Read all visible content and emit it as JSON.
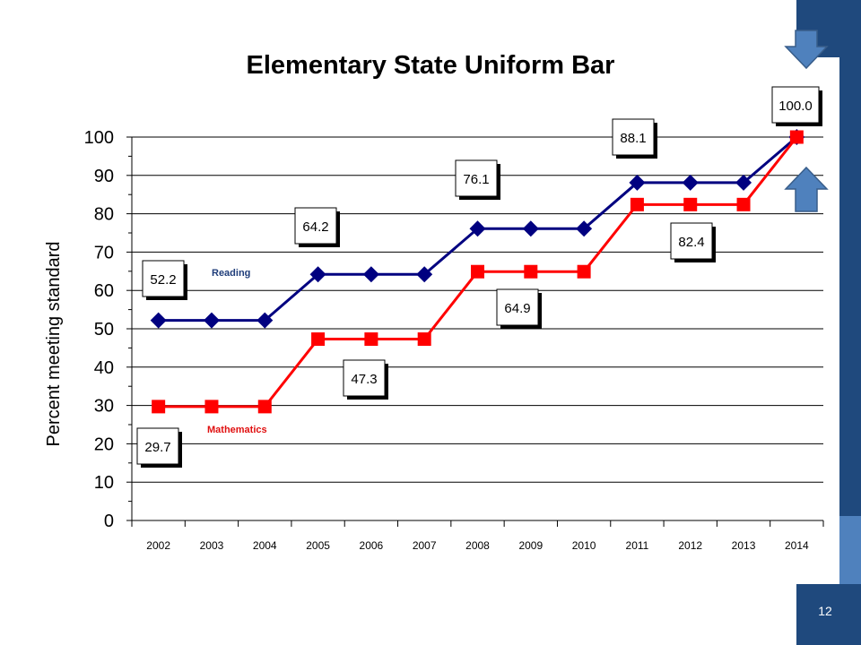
{
  "slide": {
    "page_number": "12"
  },
  "colors": {
    "navy_band": "#1f497d",
    "light_band": "#4f81bd",
    "reading_line": "#000080",
    "math_line": "#ff0000",
    "arrow_fill": "#4f81bd"
  },
  "icons": {
    "down_arrow": "down-arrow-icon",
    "up_arrow": "up-arrow-icon"
  },
  "chart_data": {
    "type": "line",
    "title": "Elementary State Uniform Bar",
    "xlabel": "",
    "ylabel": "Percent meeting standard",
    "categories": [
      "2002",
      "2003",
      "2004",
      "2005",
      "2006",
      "2007",
      "2008",
      "2009",
      "2010",
      "2011",
      "2012",
      "2013",
      "2014"
    ],
    "ylim": [
      0,
      100
    ],
    "yticks": [
      0,
      10,
      20,
      30,
      40,
      50,
      60,
      70,
      80,
      90,
      100
    ],
    "grid": true,
    "series": [
      {
        "name": "Reading",
        "color": "#000080",
        "marker": "diamond",
        "values": [
          52.2,
          52.2,
          52.2,
          64.2,
          64.2,
          64.2,
          76.1,
          76.1,
          76.1,
          88.1,
          88.1,
          88.1,
          100.0
        ]
      },
      {
        "name": "Mathematics",
        "color": "#ff0000",
        "marker": "square",
        "values": [
          29.7,
          29.7,
          29.7,
          47.3,
          47.3,
          47.3,
          64.9,
          64.9,
          64.9,
          82.4,
          82.4,
          82.4,
          100.0
        ]
      }
    ],
    "data_labels": [
      {
        "text": "52.2",
        "series": 0,
        "index": 0
      },
      {
        "text": "64.2",
        "series": 0,
        "index": 3
      },
      {
        "text": "76.1",
        "series": 0,
        "index": 6
      },
      {
        "text": "88.1",
        "series": 0,
        "index": 9
      },
      {
        "text": "100.0",
        "series": 0,
        "index": 12
      },
      {
        "text": "29.7",
        "series": 1,
        "index": 0
      },
      {
        "text": "47.3",
        "series": 1,
        "index": 3
      },
      {
        "text": "64.9",
        "series": 1,
        "index": 6
      },
      {
        "text": "82.4",
        "series": 1,
        "index": 9
      }
    ]
  }
}
